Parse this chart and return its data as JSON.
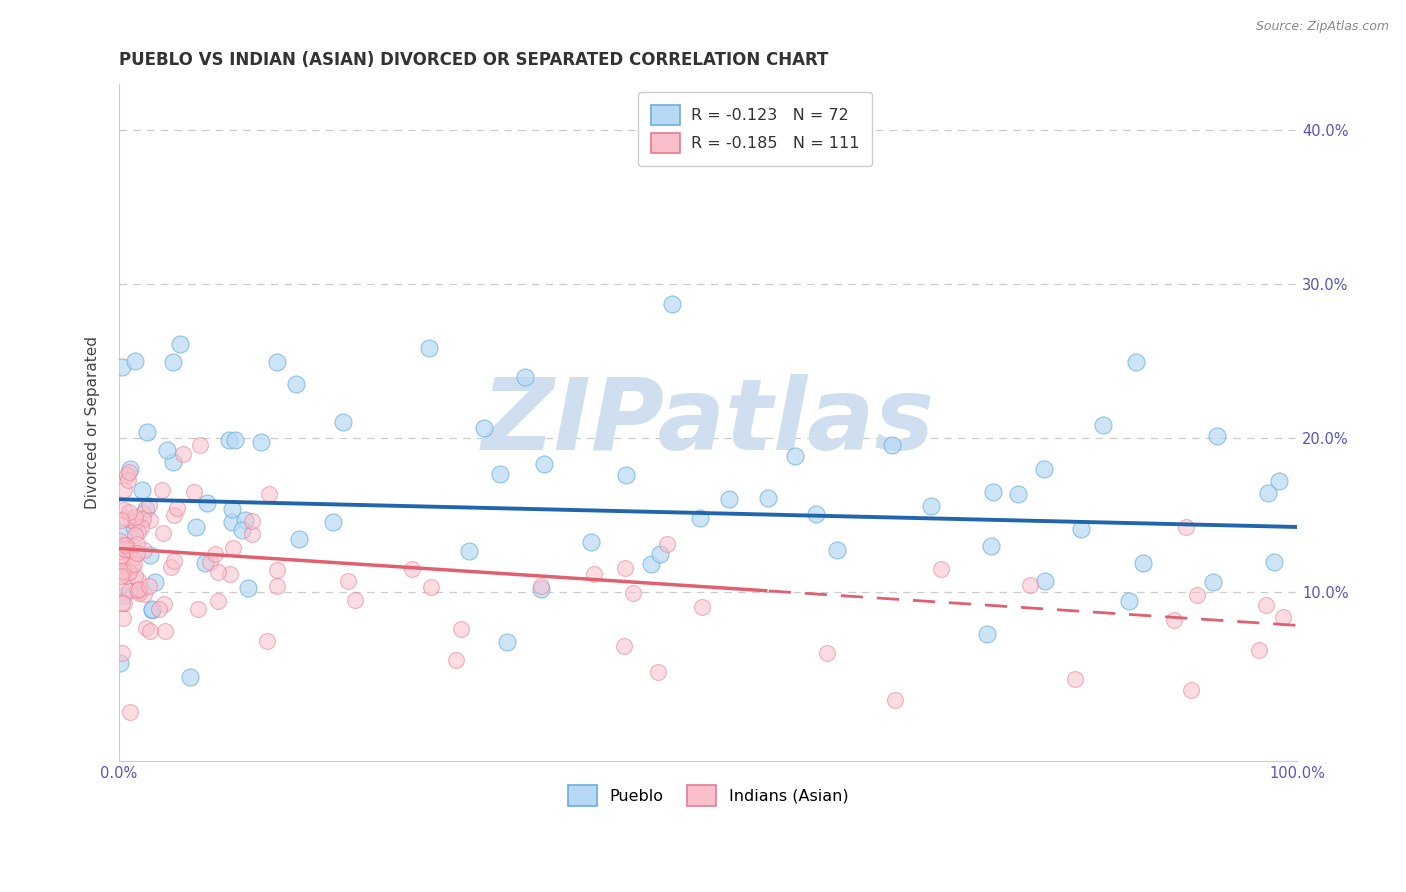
{
  "title": "PUEBLO VS INDIAN (ASIAN) DIVORCED OR SEPARATED CORRELATION CHART",
  "source": "Source: ZipAtlas.com",
  "ylabel": "Divorced or Separated",
  "xlim": [
    0,
    100
  ],
  "ylim": [
    -1,
    43
  ],
  "legend_r_blue": "-0.123",
  "legend_n_blue": "72",
  "legend_r_pink": "-0.185",
  "legend_n_pink": "111",
  "legend_label_blue": "Pueblo",
  "legend_label_pink": "Indians (Asian)",
  "blue_face": "#b8d9f5",
  "blue_edge": "#6baed6",
  "pink_face": "#f9c0cc",
  "pink_edge": "#e87a8e",
  "blue_line_color": "#2166ac",
  "pink_line_color": "#e06070",
  "watermark_text": "ZIPatlas",
  "watermark_color": "#d0dff0",
  "background_color": "#ffffff",
  "title_color": "#333333",
  "axis_tick_color": "#5555bb",
  "grid_color": "#cccccc",
  "source_color": "#888888",
  "blue_intercept": 16.0,
  "blue_slope": -0.018,
  "pink_intercept": 12.8,
  "pink_slope": -0.05,
  "pink_dash_start": 55
}
